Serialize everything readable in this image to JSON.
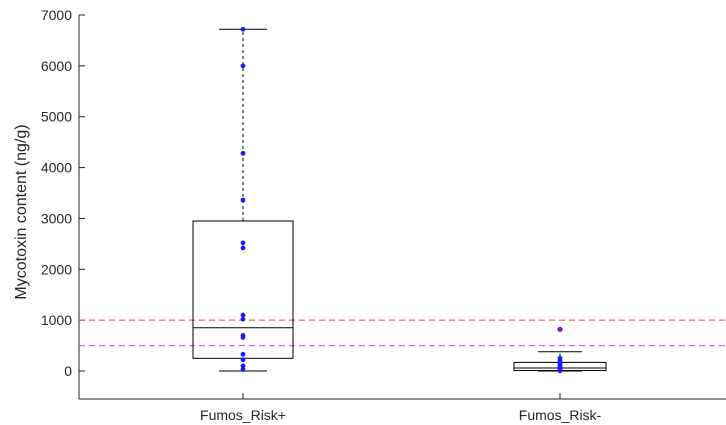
{
  "chart_data": {
    "type": "box",
    "title": "",
    "xlabel": "",
    "ylabel": "Mycotoxin content (ng/g)",
    "ylim": [
      -550,
      7000
    ],
    "yticks": [
      0,
      1000,
      2000,
      3000,
      4000,
      5000,
      6000,
      7000
    ],
    "categories": [
      "Fumos_Risk+",
      "Fumos_Risk-"
    ],
    "grid": false,
    "boxes": [
      {
        "category": "Fumos_Risk+",
        "whisker_low": 0,
        "q1": 250,
        "median": 850,
        "q3": 2950,
        "whisker_high": 6720,
        "outliers": [],
        "points": [
          6720,
          6000,
          4280,
          3360,
          2520,
          2420,
          1100,
          1020,
          700,
          660,
          330,
          220,
          100,
          30
        ]
      },
      {
        "category": "Fumos_Risk-",
        "whisker_low": 0,
        "q1": 10,
        "median": 60,
        "q3": 170,
        "whisker_high": 380,
        "outliers": [
          820
        ],
        "points": [
          820,
          250,
          200,
          170,
          150,
          120,
          90,
          60,
          40,
          20,
          5
        ]
      }
    ],
    "reference_lines": [
      {
        "value": 1000,
        "color": "#f03c3c",
        "style": "dashed"
      },
      {
        "value": 500,
        "color": "#e040e0",
        "style": "dashed"
      }
    ],
    "colors": {
      "box": "#000000",
      "point": "#1a1aff",
      "outlier": "#7a1fa2",
      "axis": "#262626"
    }
  }
}
